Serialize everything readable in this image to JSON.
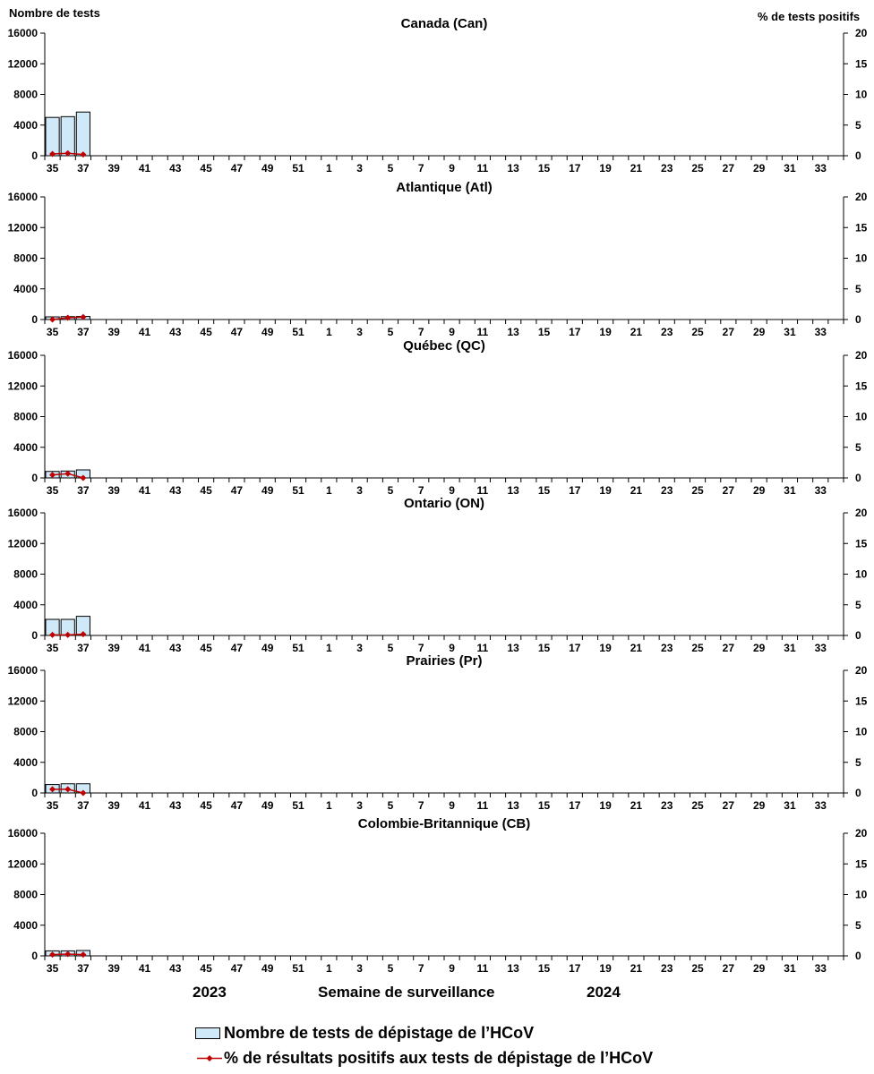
{
  "page": {
    "y_left_title": "Nombre de tests",
    "y_right_title": "% de tests positifs",
    "x_title": "Semaine de surveillance",
    "year_left": "2023",
    "year_right": "2024"
  },
  "legend": {
    "bars_label": "Nombre de tests de dépistage de l’HCoV",
    "line_label": "% de résultats positifs aux tests de dépistage de l’HCoV"
  },
  "colors": {
    "bar_fill": "#cfe9f8",
    "bar_stroke": "#000000",
    "line": "#c00000"
  },
  "chart_data": [
    {
      "type": "bar",
      "title": "Canada (Can)",
      "weeks": [
        35,
        36,
        37,
        38,
        39,
        40,
        41,
        42,
        43,
        44,
        45,
        46,
        47,
        48,
        49,
        50,
        51,
        52,
        1,
        2,
        3,
        4,
        5,
        6,
        7,
        8,
        9,
        10,
        11,
        12,
        13,
        14,
        15,
        16,
        17,
        18,
        19,
        20,
        21,
        22,
        23,
        24,
        25,
        26,
        27,
        28,
        29,
        30,
        31,
        32,
        33,
        34
      ],
      "tick_labels": [
        "35",
        "37",
        "39",
        "41",
        "43",
        "45",
        "47",
        "49",
        "51",
        "1",
        "3",
        "5",
        "7",
        "9",
        "11",
        "13",
        "15",
        "17",
        "19",
        "21",
        "23",
        "25",
        "27",
        "29",
        "31",
        "33"
      ],
      "ylim_left": [
        0,
        16000
      ],
      "yticks_left": [
        "0",
        "4000",
        "8000",
        "12000",
        "16000"
      ],
      "ylim_right": [
        0,
        20
      ],
      "yticks_right": [
        "0",
        "5",
        "10",
        "15",
        "20"
      ],
      "series": [
        {
          "name": "Nombre de tests de dépistage de l’HCoV",
          "axis": "left",
          "values": [
            5000,
            5100,
            5700
          ]
        },
        {
          "name": "% de résultats positifs aux tests de dépistage de l’HCoV",
          "axis": "right",
          "values": [
            0.3,
            0.4,
            0.2
          ]
        }
      ]
    },
    {
      "type": "bar",
      "title": "Atlantique (Atl)",
      "weeks": [
        35,
        36,
        37,
        38,
        39,
        40,
        41,
        42,
        43,
        44,
        45,
        46,
        47,
        48,
        49,
        50,
        51,
        52,
        1,
        2,
        3,
        4,
        5,
        6,
        7,
        8,
        9,
        10,
        11,
        12,
        13,
        14,
        15,
        16,
        17,
        18,
        19,
        20,
        21,
        22,
        23,
        24,
        25,
        26,
        27,
        28,
        29,
        30,
        31,
        32,
        33,
        34
      ],
      "tick_labels": [
        "35",
        "37",
        "39",
        "41",
        "43",
        "45",
        "47",
        "49",
        "51",
        "1",
        "3",
        "5",
        "7",
        "9",
        "11",
        "13",
        "15",
        "17",
        "19",
        "21",
        "23",
        "25",
        "27",
        "29",
        "31",
        "33"
      ],
      "ylim_left": [
        0,
        16000
      ],
      "yticks_left": [
        "0",
        "4000",
        "8000",
        "12000",
        "16000"
      ],
      "ylim_right": [
        0,
        20
      ],
      "yticks_right": [
        "0",
        "5",
        "10",
        "15",
        "20"
      ],
      "series": [
        {
          "name": "Nombre de tests de dépistage de l’HCoV",
          "axis": "left",
          "values": [
            350,
            380,
            400
          ]
        },
        {
          "name": "% de résultats positifs aux tests de dépistage de l’HCoV",
          "axis": "right",
          "values": [
            0.0,
            0.3,
            0.4
          ]
        }
      ]
    },
    {
      "type": "bar",
      "title": "Québec (QC)",
      "weeks": [
        35,
        36,
        37,
        38,
        39,
        40,
        41,
        42,
        43,
        44,
        45,
        46,
        47,
        48,
        49,
        50,
        51,
        52,
        1,
        2,
        3,
        4,
        5,
        6,
        7,
        8,
        9,
        10,
        11,
        12,
        13,
        14,
        15,
        16,
        17,
        18,
        19,
        20,
        21,
        22,
        23,
        24,
        25,
        26,
        27,
        28,
        29,
        30,
        31,
        32,
        33,
        34
      ],
      "tick_labels": [
        "35",
        "37",
        "39",
        "41",
        "43",
        "45",
        "47",
        "49",
        "51",
        "1",
        "3",
        "5",
        "7",
        "9",
        "11",
        "13",
        "15",
        "17",
        "19",
        "21",
        "23",
        "25",
        "27",
        "29",
        "31",
        "33"
      ],
      "ylim_left": [
        0,
        16000
      ],
      "yticks_left": [
        "0",
        "4000",
        "8000",
        "12000",
        "16000"
      ],
      "ylim_right": [
        0,
        20
      ],
      "yticks_right": [
        "0",
        "5",
        "10",
        "15",
        "20"
      ],
      "series": [
        {
          "name": "Nombre de tests de dépistage de l’HCoV",
          "axis": "left",
          "values": [
            850,
            900,
            1050
          ]
        },
        {
          "name": "% de résultats positifs aux tests de dépistage de l’HCoV",
          "axis": "right",
          "values": [
            0.5,
            0.7,
            0.0
          ]
        }
      ]
    },
    {
      "type": "bar",
      "title": "Ontario (ON)",
      "weeks": [
        35,
        36,
        37,
        38,
        39,
        40,
        41,
        42,
        43,
        44,
        45,
        46,
        47,
        48,
        49,
        50,
        51,
        52,
        1,
        2,
        3,
        4,
        5,
        6,
        7,
        8,
        9,
        10,
        11,
        12,
        13,
        14,
        15,
        16,
        17,
        18,
        19,
        20,
        21,
        22,
        23,
        24,
        25,
        26,
        27,
        28,
        29,
        30,
        31,
        32,
        33,
        34
      ],
      "tick_labels": [
        "35",
        "37",
        "39",
        "41",
        "43",
        "45",
        "47",
        "49",
        "51",
        "1",
        "3",
        "5",
        "7",
        "9",
        "11",
        "13",
        "15",
        "17",
        "19",
        "21",
        "23",
        "25",
        "27",
        "29",
        "31",
        "33"
      ],
      "ylim_left": [
        0,
        16000
      ],
      "yticks_left": [
        "0",
        "4000",
        "8000",
        "12000",
        "16000"
      ],
      "ylim_right": [
        0,
        20
      ],
      "yticks_right": [
        "0",
        "5",
        "10",
        "15",
        "20"
      ],
      "series": [
        {
          "name": "Nombre de tests de dépistage de l’HCoV",
          "axis": "left",
          "values": [
            2100,
            2100,
            2500
          ]
        },
        {
          "name": "% de résultats positifs aux tests de dépistage de l’HCoV",
          "axis": "right",
          "values": [
            0.1,
            0.1,
            0.2
          ]
        }
      ]
    },
    {
      "type": "bar",
      "title": "Prairies (Pr)",
      "weeks": [
        35,
        36,
        37,
        38,
        39,
        40,
        41,
        42,
        43,
        44,
        45,
        46,
        47,
        48,
        49,
        50,
        51,
        52,
        1,
        2,
        3,
        4,
        5,
        6,
        7,
        8,
        9,
        10,
        11,
        12,
        13,
        14,
        15,
        16,
        17,
        18,
        19,
        20,
        21,
        22,
        23,
        24,
        25,
        26,
        27,
        28,
        29,
        30,
        31,
        32,
        33,
        34
      ],
      "tick_labels": [
        "35",
        "37",
        "39",
        "41",
        "43",
        "45",
        "47",
        "49",
        "51",
        "1",
        "3",
        "5",
        "7",
        "9",
        "11",
        "13",
        "15",
        "17",
        "19",
        "21",
        "23",
        "25",
        "27",
        "29",
        "31",
        "33"
      ],
      "ylim_left": [
        0,
        16000
      ],
      "yticks_left": [
        "0",
        "4000",
        "8000",
        "12000",
        "16000"
      ],
      "ylim_right": [
        0,
        20
      ],
      "yticks_right": [
        "0",
        "5",
        "10",
        "15",
        "20"
      ],
      "series": [
        {
          "name": "Nombre de tests de dépistage de l’HCoV",
          "axis": "left",
          "values": [
            1100,
            1200,
            1200
          ]
        },
        {
          "name": "% de résultats positifs aux tests de dépistage de l’HCoV",
          "axis": "right",
          "values": [
            0.6,
            0.6,
            0.0
          ]
        }
      ]
    },
    {
      "type": "bar",
      "title": "Colombie-Britannique (CB)",
      "weeks": [
        35,
        36,
        37,
        38,
        39,
        40,
        41,
        42,
        43,
        44,
        45,
        46,
        47,
        48,
        49,
        50,
        51,
        52,
        1,
        2,
        3,
        4,
        5,
        6,
        7,
        8,
        9,
        10,
        11,
        12,
        13,
        14,
        15,
        16,
        17,
        18,
        19,
        20,
        21,
        22,
        23,
        24,
        25,
        26,
        27,
        28,
        29,
        30,
        31,
        32,
        33,
        34
      ],
      "tick_labels": [
        "35",
        "37",
        "39",
        "41",
        "43",
        "45",
        "47",
        "49",
        "51",
        "1",
        "3",
        "5",
        "7",
        "9",
        "11",
        "13",
        "15",
        "17",
        "19",
        "21",
        "23",
        "25",
        "27",
        "29",
        "31",
        "33"
      ],
      "ylim_left": [
        0,
        16000
      ],
      "yticks_left": [
        "0",
        "4000",
        "8000",
        "12000",
        "16000"
      ],
      "ylim_right": [
        0,
        20
      ],
      "yticks_right": [
        "0",
        "5",
        "10",
        "15",
        "20"
      ],
      "series": [
        {
          "name": "Nombre de tests de dépistage de l’HCoV",
          "axis": "left",
          "values": [
            650,
            650,
            700
          ]
        },
        {
          "name": "% de résultats positifs aux tests de dépistage de l’HCoV",
          "axis": "right",
          "values": [
            0.2,
            0.3,
            0.2
          ]
        }
      ]
    }
  ]
}
